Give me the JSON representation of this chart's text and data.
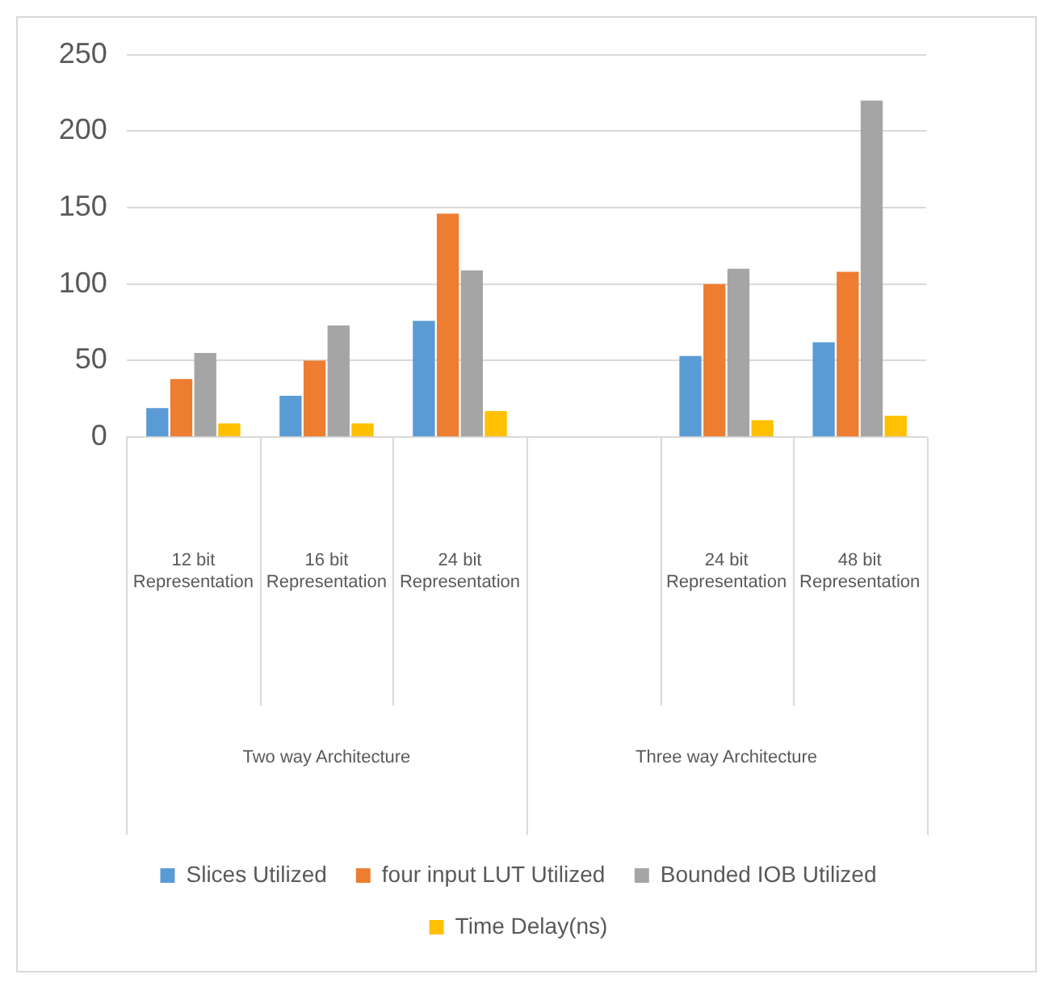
{
  "chart_data": {
    "type": "bar",
    "categories": [
      "12 bit Representation",
      "16 bit Representation",
      "24 bit Representation",
      null,
      "24 bit Representation",
      "48 bit Representation"
    ],
    "series": [
      {
        "name": "Slices Utilized",
        "color": "#5b9bd5",
        "values": [
          19,
          27,
          76,
          null,
          53,
          62
        ]
      },
      {
        "name": "four input LUT Utilized",
        "color": "#ed7d31",
        "values": [
          38,
          50,
          146,
          null,
          100,
          108
        ]
      },
      {
        "name": "Bounded IOB Utilized",
        "color": "#a5a5a5",
        "values": [
          55,
          73,
          109,
          null,
          110,
          220
        ]
      },
      {
        "name": "Time Delay(ns)",
        "color": "#ffc000",
        "values": [
          9,
          9,
          17,
          null,
          11,
          14
        ]
      }
    ],
    "annotations": [
      "Two way Architecture",
      "Three way Architecture"
    ],
    "ylim": [
      0,
      250
    ],
    "yticks": [
      0,
      50,
      100,
      150,
      200,
      250
    ],
    "grid": "y",
    "legend": "bottom"
  }
}
